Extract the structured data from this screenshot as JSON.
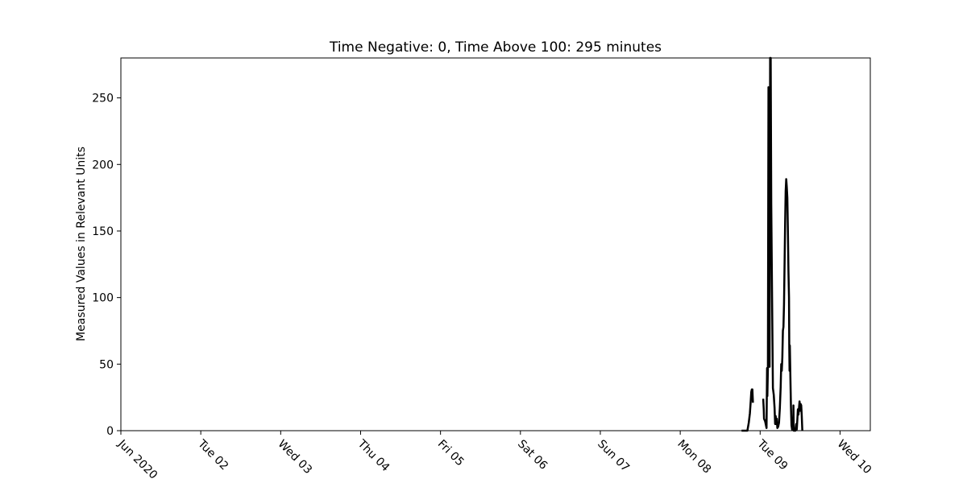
{
  "chart_data": {
    "type": "line",
    "title": "Time Negative: 0, Time Above 100: 295 minutes",
    "xlabel": "",
    "ylabel": "Measured Values in Relevant Units",
    "x_tick_labels": [
      "Jun 2020",
      "Tue 02",
      "Wed 03",
      "Thu 04",
      "Fri 05",
      "Sat 06",
      "Sun 07",
      "Mon 08",
      "Tue 09",
      "Wed 10"
    ],
    "x_tick_dates": [
      "2020-06-01",
      "2020-06-02",
      "2020-06-03",
      "2020-06-04",
      "2020-06-05",
      "2020-06-06",
      "2020-06-07",
      "2020-06-08",
      "2020-06-09",
      "2020-06-10"
    ],
    "xlim": [
      "2020-06-01T00:00",
      "2020-06-10T09:05"
    ],
    "ylim": [
      0,
      280
    ],
    "y_ticks": [
      0,
      50,
      100,
      150,
      200,
      250
    ],
    "grid": false,
    "legend": "none",
    "line_color": "#000000",
    "series": [
      {
        "segments": [
          [
            [
              "2020-06-08T18:25",
              0
            ],
            [
              "2020-06-08T20:10",
              0
            ],
            [
              "2020-06-08T20:35",
              6
            ],
            [
              "2020-06-08T20:55",
              13
            ],
            [
              "2020-06-08T21:10",
              22
            ],
            [
              "2020-06-08T21:20",
              29
            ],
            [
              "2020-06-08T21:30",
              31
            ],
            [
              "2020-06-08T21:40",
              31
            ],
            [
              "2020-06-08T21:50",
              21
            ]
          ],
          [
            [
              "2020-06-09T00:55",
              24
            ],
            [
              "2020-06-09T01:05",
              16
            ],
            [
              "2020-06-09T01:10",
              9
            ],
            [
              "2020-06-09T01:20",
              8
            ],
            [
              "2020-06-09T01:30",
              7
            ],
            [
              "2020-06-09T01:45",
              4
            ],
            [
              "2020-06-09T01:55",
              2
            ],
            [
              "2020-06-09T02:05",
              47
            ],
            [
              "2020-06-09T02:10",
              26
            ],
            [
              "2020-06-09T02:20",
              48
            ],
            [
              "2020-06-09T02:30",
              258
            ],
            [
              "2020-06-09T02:40",
              52
            ],
            [
              "2020-06-09T02:50",
              48
            ],
            [
              "2020-06-09T03:00",
              280
            ],
            [
              "2020-06-09T03:10",
              280
            ],
            [
              "2020-06-09T03:20",
              170
            ],
            [
              "2020-06-09T03:35",
              100
            ],
            [
              "2020-06-09T03:50",
              32
            ],
            [
              "2020-06-09T04:05",
              27
            ],
            [
              "2020-06-09T04:20",
              17
            ],
            [
              "2020-06-09T04:30",
              5
            ],
            [
              "2020-06-09T04:40",
              11
            ],
            [
              "2020-06-09T04:50",
              5
            ],
            [
              "2020-06-09T05:00",
              9
            ],
            [
              "2020-06-09T05:10",
              2
            ],
            [
              "2020-06-09T05:25",
              3
            ],
            [
              "2020-06-09T05:40",
              6
            ],
            [
              "2020-06-09T05:55",
              17
            ],
            [
              "2020-06-09T06:10",
              33
            ],
            [
              "2020-06-09T06:20",
              50
            ],
            [
              "2020-06-09T06:30",
              45
            ],
            [
              "2020-06-09T06:40",
              55
            ],
            [
              "2020-06-09T06:50",
              75
            ],
            [
              "2020-06-09T07:00",
              78
            ],
            [
              "2020-06-09T07:10",
              95
            ],
            [
              "2020-06-09T07:20",
              125
            ],
            [
              "2020-06-09T07:30",
              155
            ],
            [
              "2020-06-09T07:40",
              180
            ],
            [
              "2020-06-09T07:50",
              189
            ],
            [
              "2020-06-09T08:00",
              183
            ],
            [
              "2020-06-09T08:10",
              175
            ],
            [
              "2020-06-09T08:20",
              150
            ],
            [
              "2020-06-09T08:30",
              120
            ],
            [
              "2020-06-09T08:40",
              100
            ],
            [
              "2020-06-09T08:45",
              62
            ],
            [
              "2020-06-09T08:50",
              45
            ],
            [
              "2020-06-09T08:55",
              64
            ],
            [
              "2020-06-09T09:05",
              40
            ],
            [
              "2020-06-09T09:15",
              18
            ],
            [
              "2020-06-09T09:25",
              4
            ],
            [
              "2020-06-09T09:35",
              1
            ],
            [
              "2020-06-09T09:45",
              3
            ],
            [
              "2020-06-09T09:55",
              2
            ],
            [
              "2020-06-09T10:00",
              19
            ],
            [
              "2020-06-09T10:05",
              0
            ],
            [
              "2020-06-09T10:20",
              0
            ],
            [
              "2020-06-09T10:35",
              0
            ],
            [
              "2020-06-09T10:50",
              5
            ],
            [
              "2020-06-09T11:00",
              1
            ],
            [
              "2020-06-09T11:10",
              8
            ],
            [
              "2020-06-09T11:20",
              16
            ],
            [
              "2020-06-09T11:30",
              12
            ],
            [
              "2020-06-09T11:40",
              17
            ],
            [
              "2020-06-09T11:50",
              22
            ],
            [
              "2020-06-09T12:00",
              15
            ],
            [
              "2020-06-09T12:10",
              20
            ],
            [
              "2020-06-09T12:20",
              19
            ],
            [
              "2020-06-09T12:30",
              11
            ],
            [
              "2020-06-09T12:40",
              0
            ]
          ]
        ]
      }
    ]
  }
}
